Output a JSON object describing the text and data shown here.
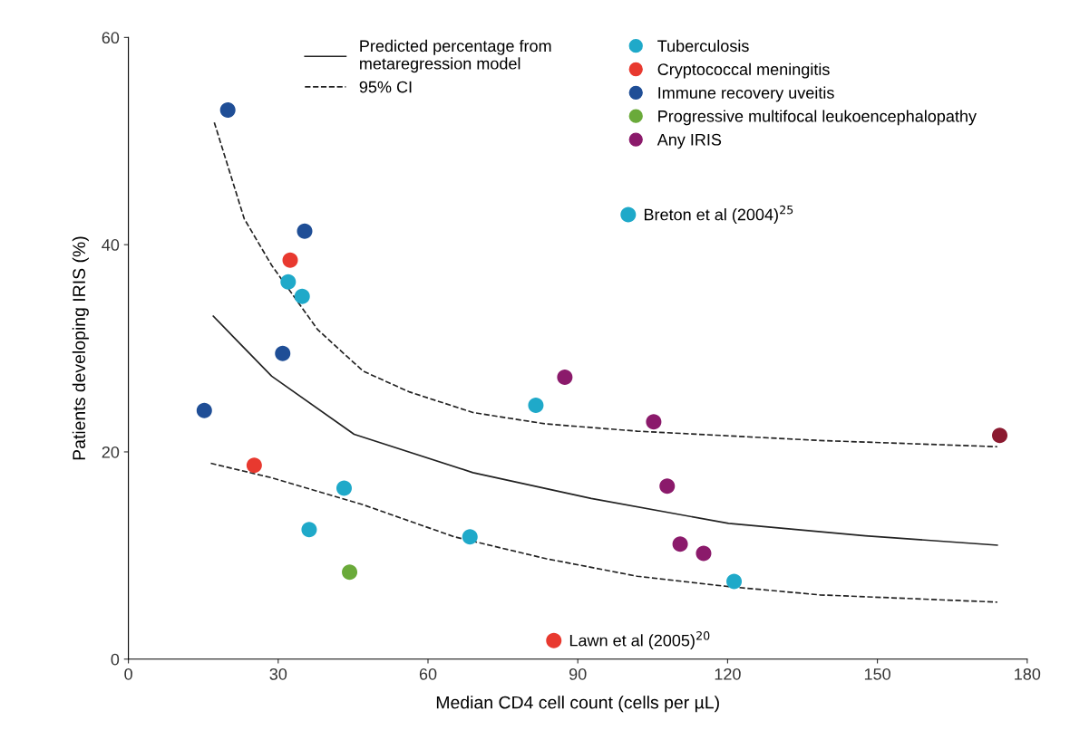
{
  "chart_data": {
    "type": "scatter",
    "xlabel": "Median CD4 cell count (cells per µL)",
    "ylabel": "Patients developing IRIS (%)",
    "xlim": [
      0,
      180
    ],
    "xticks": [
      0,
      30,
      60,
      90,
      120,
      150,
      180
    ],
    "ylim": [
      0,
      60
    ],
    "yticks": [
      0,
      20,
      40,
      60
    ],
    "grid": false,
    "legend": "top",
    "marker": "circle",
    "series": [
      {
        "type": "line",
        "name": "Predicted percentage from\nmetaregression model",
        "color": "#222222",
        "line_style": "solid",
        "marker": "none",
        "x": [
          17,
          28.7,
          45.2,
          69,
          92.7,
          120.2,
          147.6,
          174
        ],
        "values": [
          33.1,
          27.3,
          21.7,
          18.0,
          15.5,
          13.1,
          11.9,
          11.0
        ]
      },
      {
        "type": "line",
        "name": "95% CI",
        "color": "#222222",
        "line_style": "dashed",
        "marker": "none",
        "x": [
          17.2,
          23.2,
          28.7,
          37.9,
          47,
          56.2,
          69,
          83.6,
          101.9,
          138.5,
          174
        ],
        "values": [
          51.8,
          42.5,
          38.0,
          31.8,
          27.8,
          25.8,
          23.8,
          22.7,
          22.0,
          21.1,
          20.5
        ]
      },
      {
        "type": "line",
        "color": "#222222",
        "line_style": "dashed",
        "marker": "none",
        "x": [
          16.5,
          28.7,
          47,
          65.3,
          83.6,
          101.9,
          120.2,
          138.5,
          174
        ],
        "values": [
          18.9,
          17.5,
          14.9,
          11.8,
          9.7,
          8.0,
          7.0,
          6.2,
          5.5
        ]
      },
      {
        "name": "Tuberculosis",
        "color": "#1fa9c9",
        "x": [
          32.0,
          34.8,
          81.6,
          43.2,
          36.2,
          68.4,
          121.3,
          100.1
        ],
        "values": [
          36.4,
          35.0,
          24.5,
          16.5,
          12.5,
          11.8,
          7.5,
          42.9
        ]
      },
      {
        "name": "Cryptococcal meningitis",
        "color": "#e8392f",
        "x": [
          32.4,
          25.2,
          85.2
        ],
        "values": [
          38.5,
          18.7,
          1.8
        ]
      },
      {
        "name": "Immune recovery uveitis",
        "color": "#1f4e96",
        "x": [
          19.9,
          35.3,
          30.9,
          15.2
        ],
        "values": [
          53.0,
          41.3,
          29.5,
          24.0
        ]
      },
      {
        "name": "Progressive multifocal leukoencephalopathy",
        "color": "#6aaa3a",
        "x": [
          44.3
        ],
        "values": [
          8.4
        ]
      },
      {
        "name": "Any IRIS",
        "color": "#8b1a6b",
        "colors": [
          "#8b1a6b",
          "#8b1a6b",
          "#8b1a6b",
          "#8b1a6b",
          "#8b1a6b",
          "#8b1a30"
        ],
        "x": [
          87.4,
          105.2,
          107.9,
          110.5,
          115.2,
          174.5
        ],
        "values": [
          27.2,
          22.9,
          16.7,
          11.1,
          10.2,
          21.6
        ]
      }
    ],
    "annotations": [
      {
        "text": "Breton et al (2004)$^{25}$",
        "x": 100.1,
        "y": 42.9
      },
      {
        "text": "Lawn et al (2005)$^{20}$",
        "x": 85.2,
        "y": 1.8
      }
    ]
  }
}
